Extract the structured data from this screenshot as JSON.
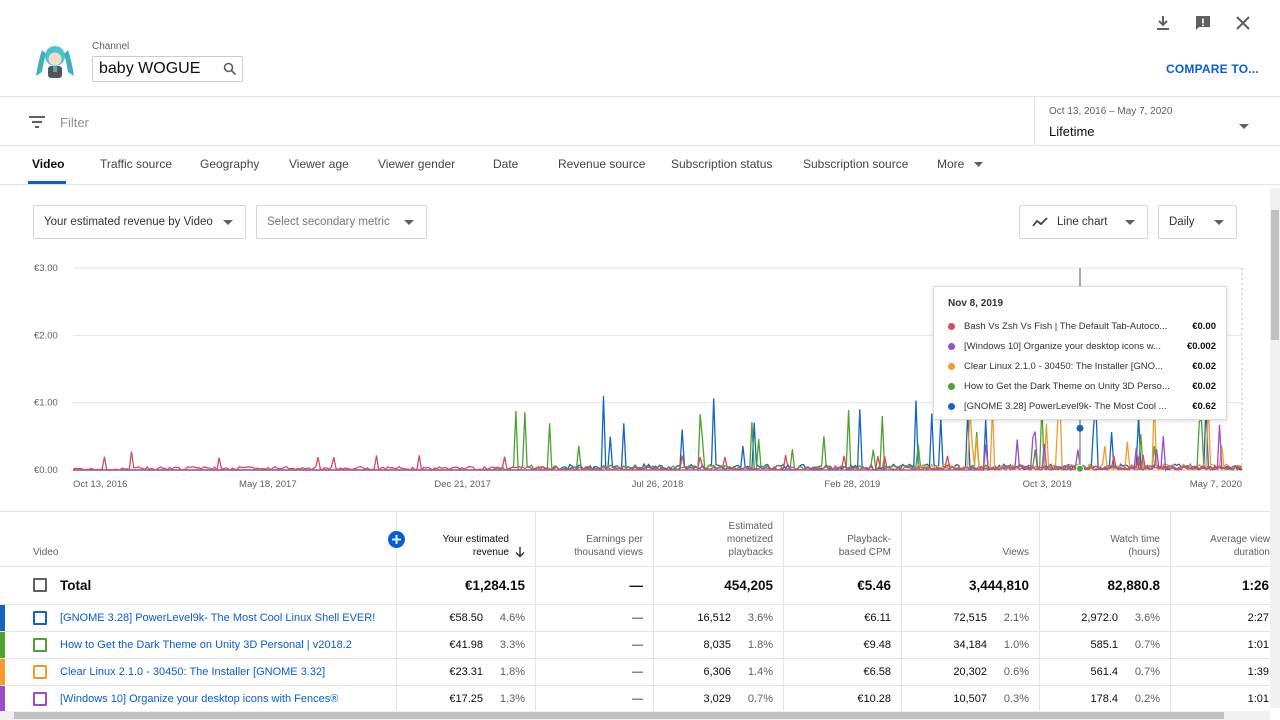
{
  "header": {
    "channel_label": "Channel",
    "channel_name": "baby WOGUE",
    "compare_label": "COMPARE TO..."
  },
  "filter": {
    "placeholder": "Filter",
    "date_range": "Oct 13, 2016 – May 7, 2020",
    "date_label": "Lifetime"
  },
  "tabs": [
    {
      "label": "Video"
    },
    {
      "label": "Traffic source"
    },
    {
      "label": "Geography"
    },
    {
      "label": "Viewer age"
    },
    {
      "label": "Viewer gender"
    },
    {
      "label": "Date"
    },
    {
      "label": "Revenue source"
    },
    {
      "label": "Subscription status"
    },
    {
      "label": "Subscription source"
    },
    {
      "label": "More"
    }
  ],
  "controls": {
    "primary_metric": "Your estimated revenue by Video",
    "secondary_metric": "Select secondary metric",
    "chart_type": "Line chart",
    "granularity": "Daily"
  },
  "colors": {
    "accent": "#065fd4",
    "series1": "#d64d5e",
    "series2": "#9b4dca",
    "series3": "#f39c2c",
    "series4": "#4ea22f",
    "series5": "#1565c0"
  },
  "chart_data": {
    "type": "line",
    "y_tick_labels": [
      "€0.00",
      "€1.00",
      "€2.00",
      "€3.00"
    ],
    "x_tick_labels": [
      "Oct 13, 2016",
      "May 18, 2017",
      "Dec 21, 2017",
      "Jul 26, 2018",
      "Feb 28, 2019",
      "Oct 3, 2019",
      "May 7, 2020"
    ],
    "ylim": [
      0,
      3
    ],
    "grid": true,
    "tooltip": {
      "date": "Nov 8, 2019",
      "rows": [
        {
          "label": "Bash Vs Zsh Vs Fish | The Default Tab-Autoco...",
          "value": "€0.00"
        },
        {
          "label": "[Windows 10] Organize your desktop icons w...",
          "value": "€0.002"
        },
        {
          "label": "Clear Linux 2.1.0 - 30450: The Installer [GNO...",
          "value": "€0.02"
        },
        {
          "label": "How to Get the Dark Theme on Unity 3D Perso...",
          "value": "€0.02"
        },
        {
          "label": "[GNOME 3.28] PowerLevel9k- The Most Cool ...",
          "value": "€0.62"
        }
      ]
    }
  },
  "table": {
    "headers": {
      "video": "Video",
      "revenue": "Your estimated revenue",
      "rpm": "Earnings per thousand views",
      "playbacks": "Estimated monetized playbacks",
      "cpm": "Playback-based CPM",
      "views": "Views",
      "watch": "Watch time (hours)",
      "avd": "Average view duration"
    },
    "total": {
      "label": "Total",
      "revenue": "€1,284.15",
      "rpm": "—",
      "playbacks": "454,205",
      "cpm": "€5.46",
      "views": "3,444,810",
      "watch": "82,880.8",
      "avd": "1:26"
    },
    "rows": [
      {
        "title": "[GNOME 3.28] PowerLevel9k- The Most Cool Linux Shell EVER!",
        "revenue": "€58.50",
        "revenue_pct": "4.6%",
        "rpm": "—",
        "playbacks": "16,512",
        "playbacks_pct": "3.6%",
        "cpm": "€6.11",
        "views": "72,515",
        "views_pct": "2.1%",
        "watch": "2,972.0",
        "watch_pct": "3.6%",
        "avd": "2:27"
      },
      {
        "title": "How to Get the Dark Theme on Unity 3D Personal | v2018.2",
        "revenue": "€41.98",
        "revenue_pct": "3.3%",
        "rpm": "—",
        "playbacks": "8,035",
        "playbacks_pct": "1.8%",
        "cpm": "€9.48",
        "views": "34,184",
        "views_pct": "1.0%",
        "watch": "585.1",
        "watch_pct": "0.7%",
        "avd": "1:01"
      },
      {
        "title": "Clear Linux 2.1.0 - 30450: The Installer [GNOME 3.32]",
        "revenue": "€23.31",
        "revenue_pct": "1.8%",
        "rpm": "—",
        "playbacks": "6,306",
        "playbacks_pct": "1.4%",
        "cpm": "€6.58",
        "views": "20,302",
        "views_pct": "0.6%",
        "watch": "561.4",
        "watch_pct": "0.7%",
        "avd": "1:39"
      },
      {
        "title": "[Windows 10] Organize your desktop icons with Fences®",
        "revenue": "€17.25",
        "revenue_pct": "1.3%",
        "rpm": "—",
        "playbacks": "3,029",
        "playbacks_pct": "0.7%",
        "cpm": "€10.28",
        "views": "10,507",
        "views_pct": "0.3%",
        "watch": "178.4",
        "watch_pct": "0.2%",
        "avd": "1:01"
      }
    ]
  }
}
